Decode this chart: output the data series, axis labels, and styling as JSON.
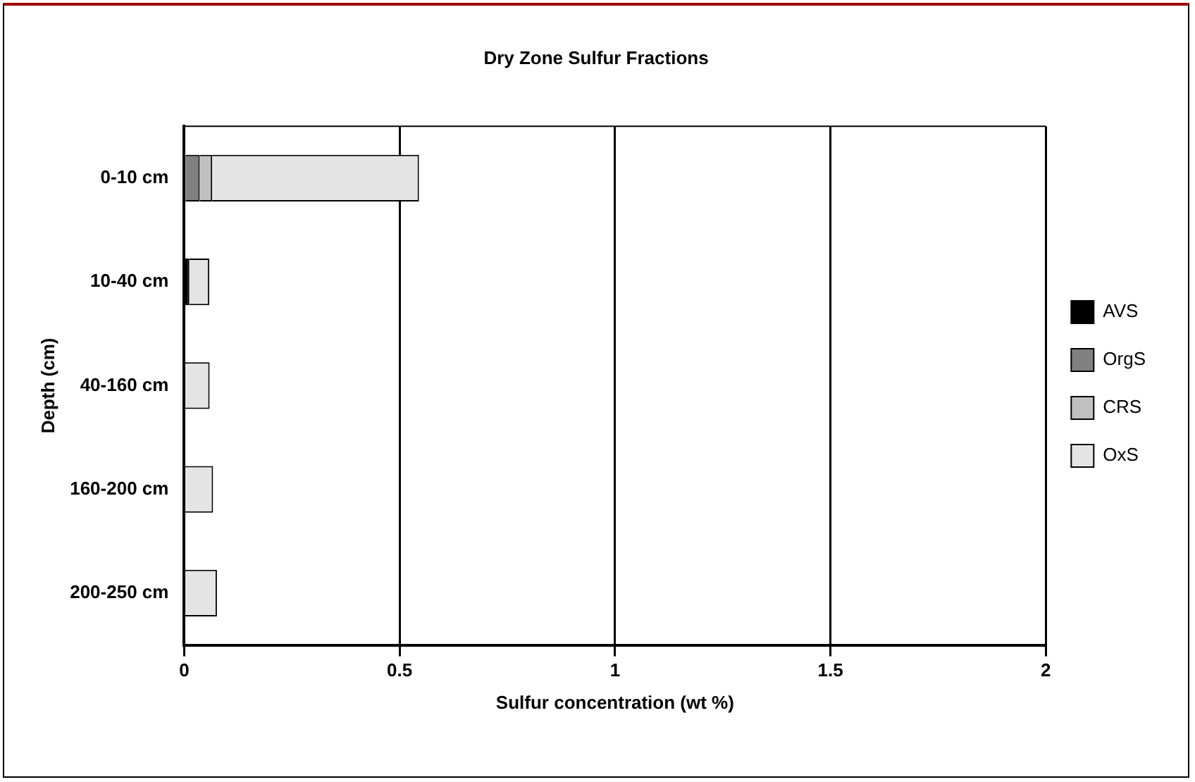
{
  "chart_data": {
    "type": "bar",
    "orientation": "horizontal",
    "stacked": true,
    "title": "Dry Zone Sulfur Fractions",
    "xlabel": "Sulfur concentration (wt %)",
    "ylabel": "Depth (cm)",
    "categories": [
      "0-10 cm",
      "10-40 cm",
      "40-160 cm",
      "160-200 cm",
      "200-250 cm"
    ],
    "series": [
      {
        "name": "AVS",
        "color": "#000000",
        "values": [
          0.003,
          0.012,
          0,
          0,
          0
        ]
      },
      {
        "name": "OrgS",
        "color": "#808080",
        "values": [
          0.033,
          0,
          0,
          0,
          0
        ]
      },
      {
        "name": "CRS",
        "color": "#c0c0c0",
        "values": [
          0.029,
          0,
          0,
          0,
          0
        ]
      },
      {
        "name": "OxS",
        "color": "#e4e4e4",
        "values": [
          0.48,
          0.046,
          0.059,
          0.067,
          0.076
        ]
      }
    ],
    "xlim": [
      0,
      2
    ],
    "xticks": [
      0,
      0.5,
      1,
      1.5,
      2
    ],
    "grid": "x",
    "legend": "right"
  }
}
